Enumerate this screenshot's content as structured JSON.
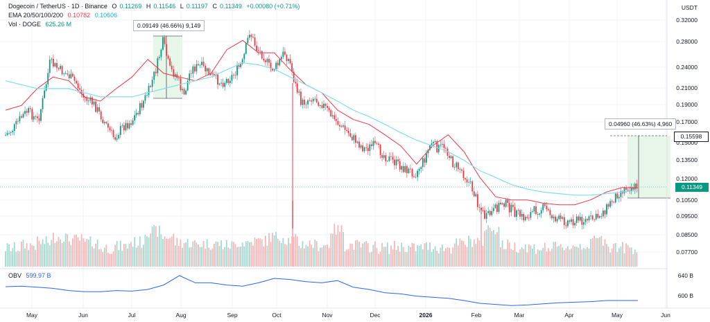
{
  "header": {
    "symbol": "Dogecoin / TetherUS · 1D · Binance",
    "ohlc": {
      "o_label": "O",
      "o_val": "0.11269",
      "h_label": "H",
      "h_val": "0.11546",
      "l_label": "L",
      "l_val": "0.11197",
      "c_label": "C",
      "c_val": "0.11349",
      "change": "+0.00080 (+0.71%)"
    },
    "ema_label": "EMA 20/50/100/200",
    "ema_val1": "0.10782",
    "ema_val2": "0.10606",
    "vol_label": "Vol · DOGE",
    "vol_val": "625.26 M"
  },
  "currency": "USDT",
  "price_axis": [
    "0.32000",
    "0.28000",
    "0.24000",
    "0.21000",
    "0.19000",
    "0.17000",
    "0.15000",
    "0.13500",
    "0.12000",
    "0.10500",
    "0.09500",
    "0.08500",
    "0.07700"
  ],
  "time_axis": [
    "May",
    "Jun",
    "Jul",
    "Aug",
    "Sep",
    "Oct",
    "Nov",
    "Dec",
    "2026",
    "Feb",
    "Mar",
    "Apr",
    "May",
    "Jun"
  ],
  "obv_axis": [
    "640 B",
    "600 B"
  ],
  "obv_label": "OBV",
  "obv_val": "599.97 B",
  "measure1": "0.09149 (46.66%) 9,149",
  "measure2": "0.04960 (46.63%) 4,960",
  "last_price": "0.11349",
  "target_price": "0.15598",
  "colors": {
    "up": "#089981",
    "down": "#f23645",
    "ema_fast": "#f23645",
    "ema_slow": "#80deea",
    "obv": "#2962ff",
    "measure_fill": "#e8f5e9"
  },
  "chart_data": {
    "type": "candlestick",
    "title": "Dogecoin / TetherUS · 1D · Binance",
    "x_range": [
      "2025-04-20",
      "2026-05-20"
    ],
    "y_scale": "log",
    "ylim": [
      0.066,
      0.34
    ],
    "series": [
      {
        "name": "EMA 20/50/100/200",
        "values_approx": [
          0.175,
          0.18,
          0.2,
          0.215,
          0.21,
          0.19,
          0.185,
          0.2,
          0.215,
          0.24,
          0.22,
          0.215,
          0.21,
          0.22,
          0.255,
          0.27,
          0.25,
          0.25,
          0.225,
          0.205,
          0.195,
          0.175,
          0.165,
          0.16,
          0.15,
          0.14,
          0.125,
          0.14,
          0.15,
          0.135,
          0.115,
          0.102,
          0.1,
          0.1,
          0.098,
          0.097,
          0.097,
          0.1,
          0.105,
          0.108,
          0.1078
        ]
      },
      {
        "name": "EMA 20/50/100/200",
        "values_approx": [
          0.21,
          0.205,
          0.2,
          0.2,
          0.2,
          0.195,
          0.19,
          0.19,
          0.19,
          0.195,
          0.2,
          0.205,
          0.21,
          0.215,
          0.225,
          0.235,
          0.232,
          0.226,
          0.215,
          0.205,
          0.195,
          0.185,
          0.175,
          0.168,
          0.16,
          0.152,
          0.145,
          0.14,
          0.135,
          0.128,
          0.12,
          0.115,
          0.11,
          0.107,
          0.105,
          0.104,
          0.103,
          0.103,
          0.104,
          0.105,
          0.1061
        ]
      },
      {
        "name": "OBV",
        "values_approx": [
          625,
          626,
          624,
          622,
          618,
          616,
          616,
          618,
          617,
          620,
          628,
          645,
          632,
          632,
          628,
          626,
          632,
          640,
          638,
          634,
          632,
          636,
          624,
          620,
          614,
          612,
          608,
          606,
          604,
          600,
          595,
          593,
          591,
          592,
          594,
          596,
          597,
          598,
          600,
          600,
          600
        ]
      }
    ],
    "volume_approx_relative": [
      0.3,
      0.4,
      0.5,
      0.7,
      0.6,
      0.5,
      0.3,
      0.35,
      0.5,
      0.9,
      0.7,
      0.5,
      0.45,
      0.45,
      0.4,
      0.5,
      0.55,
      0.7,
      0.6,
      0.45,
      0.4,
      0.95,
      0.4,
      0.35,
      0.3,
      0.35,
      0.3,
      0.35,
      0.3,
      0.45,
      0.55,
      1.0,
      0.4,
      0.35,
      0.3,
      0.3,
      0.35,
      0.4,
      0.6,
      0.35,
      0.3
    ],
    "annotations": [
      {
        "text": "0.09149 (46.66%) 9,149",
        "from": {
          "date": "2025-07-10",
          "price": 0.196
        },
        "to": {
          "date": "2025-07-22",
          "price": 0.287
        }
      },
      {
        "text": "0.04960 (46.63%) 4,960",
        "from": {
          "date": "2026-05-13",
          "price": 0.1064
        },
        "to": {
          "date": "2026-05-13",
          "price": 0.15598
        }
      }
    ],
    "last_close": 0.11349,
    "grid": true,
    "legend": "top-left"
  }
}
